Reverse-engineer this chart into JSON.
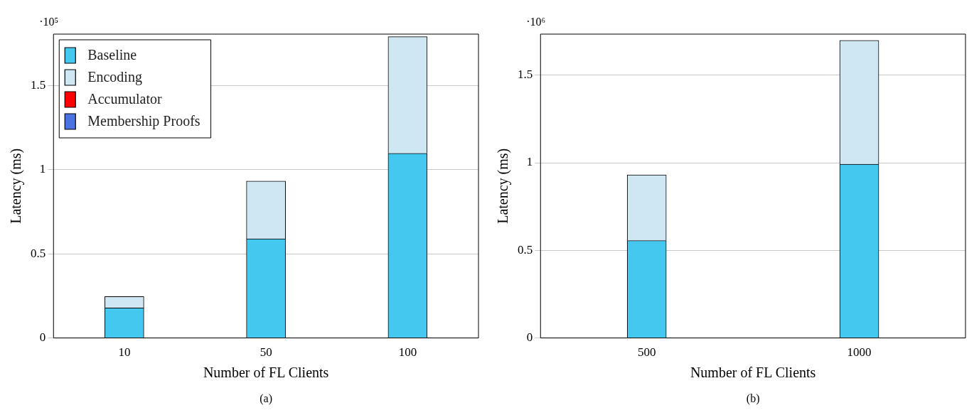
{
  "chart_data": [
    {
      "type": "bar",
      "stacked": true,
      "categories": [
        "10",
        "50",
        "100"
      ],
      "xlabel": "Number of FL Clients",
      "ylabel": "Latency (ms)",
      "series": [
        {
          "name": "Baseline",
          "color": "#44c8f0",
          "values": [
            0.178,
            0.589,
            1.097
          ]
        },
        {
          "name": "Encoding",
          "color": "#cfe6f3",
          "values": [
            0.068,
            0.343,
            0.693
          ]
        },
        {
          "name": "Accumulator",
          "color": "#ff0000",
          "values": [
            0,
            0,
            0
          ]
        },
        {
          "name": "Membership Proofs",
          "color": "#4a72e0",
          "values": [
            0,
            0,
            0
          ]
        }
      ],
      "ylim": [
        0,
        1.805
      ],
      "yticks": [
        0,
        0.5,
        1,
        1.5
      ],
      "grid": "y",
      "legend": "top left",
      "annotations": [
        "·10⁵",
        "(a)"
      ]
    },
    {
      "type": "bar",
      "stacked": true,
      "categories": [
        "500",
        "1000"
      ],
      "xlabel": "Number of FL Clients",
      "ylabel": "Latency (ms)",
      "series": [
        {
          "color": "#44c8f0",
          "values": [
            0.556,
            0.992
          ]
        },
        {
          "color": "#cfe6f3",
          "values": [
            0.375,
            0.706
          ]
        },
        {
          "color": "#ff0000",
          "values": [
            0,
            0
          ]
        },
        {
          "color": "#4a72e0",
          "values": [
            0,
            0
          ]
        }
      ],
      "ylim": [
        0,
        1.734
      ],
      "yticks": [
        0,
        0.5,
        1,
        1.5
      ],
      "grid": "y",
      "annotations": [
        "·10⁶",
        "(b)"
      ]
    }
  ]
}
